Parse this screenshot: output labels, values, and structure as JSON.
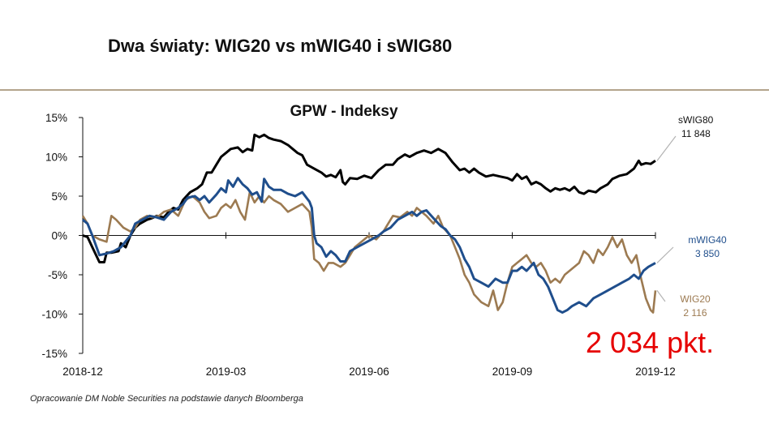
{
  "slide": {
    "title": "Dwa światy: WIG20 vs mWIG40 i sWIG80",
    "highlight": "2 034 pkt.",
    "footer": "Opracowanie DM Noble Securities  na podstawie danych Bloomberga"
  },
  "chart_data": {
    "type": "line",
    "title": "GPW - Indeksy",
    "xlabel": "",
    "ylabel": "",
    "x_range": [
      0,
      12
    ],
    "ylim": [
      -15,
      15
    ],
    "y_ticks": [
      15,
      10,
      5,
      0,
      -5,
      -10,
      -15
    ],
    "y_tick_labels": [
      "15%",
      "10%",
      "5%",
      "0%",
      "-5%",
      "-10%",
      "-15%"
    ],
    "x_ticks": [
      0,
      3,
      6,
      9,
      12
    ],
    "x_tick_labels": [
      "2018-12",
      "2019-03",
      "2019-06",
      "2019-09",
      "2019-12"
    ],
    "grid": false,
    "legend": "inline end labels",
    "series": [
      {
        "name": "sWIG80",
        "value_label": "11 848",
        "color": "#000000",
        "points": [
          [
            0,
            0
          ],
          [
            0.1,
            -0.2
          ],
          [
            0.2,
            -1.5
          ],
          [
            0.35,
            -3.4
          ],
          [
            0.45,
            -3.4
          ],
          [
            0.5,
            -2.2
          ],
          [
            0.6,
            -2.2
          ],
          [
            0.75,
            -2
          ],
          [
            0.8,
            -1
          ],
          [
            0.9,
            -1.5
          ],
          [
            1,
            0
          ],
          [
            1.1,
            1
          ],
          [
            1.2,
            1.5
          ],
          [
            1.35,
            2
          ],
          [
            1.45,
            2.2
          ],
          [
            1.55,
            2.5
          ],
          [
            1.7,
            2.3
          ],
          [
            1.8,
            3
          ],
          [
            1.9,
            3.5
          ],
          [
            2,
            3.3
          ],
          [
            2.1,
            4.5
          ],
          [
            2.25,
            5.5
          ],
          [
            2.4,
            6
          ],
          [
            2.5,
            6.5
          ],
          [
            2.6,
            8
          ],
          [
            2.7,
            8
          ],
          [
            2.8,
            9
          ],
          [
            2.9,
            10
          ],
          [
            3,
            10.5
          ],
          [
            3.1,
            11
          ],
          [
            3.25,
            11.2
          ],
          [
            3.35,
            10.6
          ],
          [
            3.45,
            11
          ],
          [
            3.55,
            10.8
          ],
          [
            3.6,
            12.8
          ],
          [
            3.7,
            12.5
          ],
          [
            3.8,
            12.8
          ],
          [
            3.9,
            12.4
          ],
          [
            4,
            12.2
          ],
          [
            4.15,
            12
          ],
          [
            4.3,
            11.5
          ],
          [
            4.4,
            11
          ],
          [
            4.5,
            10.5
          ],
          [
            4.6,
            10.2
          ],
          [
            4.7,
            9
          ],
          [
            4.85,
            8.5
          ],
          [
            5,
            8
          ],
          [
            5.1,
            7.5
          ],
          [
            5.2,
            7.7
          ],
          [
            5.3,
            7.4
          ],
          [
            5.4,
            8.3
          ],
          [
            5.45,
            6.8
          ],
          [
            5.5,
            6.5
          ],
          [
            5.6,
            7.3
          ],
          [
            5.75,
            7.2
          ],
          [
            5.9,
            7.6
          ],
          [
            6.05,
            7.3
          ],
          [
            6.2,
            8.3
          ],
          [
            6.35,
            9
          ],
          [
            6.5,
            9
          ],
          [
            6.6,
            9.7
          ],
          [
            6.75,
            10.3
          ],
          [
            6.85,
            10
          ],
          [
            7,
            10.5
          ],
          [
            7.15,
            10.8
          ],
          [
            7.3,
            10.5
          ],
          [
            7.45,
            11
          ],
          [
            7.6,
            10.5
          ],
          [
            7.75,
            9.3
          ],
          [
            7.9,
            8.3
          ],
          [
            8,
            8.5
          ],
          [
            8.1,
            8
          ],
          [
            8.2,
            8.5
          ],
          [
            8.3,
            8
          ],
          [
            8.45,
            7.5
          ],
          [
            8.6,
            7.7
          ],
          [
            8.75,
            7.5
          ],
          [
            8.9,
            7.3
          ],
          [
            9,
            7
          ],
          [
            9.1,
            7.8
          ],
          [
            9.2,
            7.2
          ],
          [
            9.3,
            7.5
          ],
          [
            9.4,
            6.5
          ],
          [
            9.5,
            6.8
          ],
          [
            9.6,
            6.5
          ],
          [
            9.7,
            6
          ],
          [
            9.8,
            5.6
          ],
          [
            9.9,
            6
          ],
          [
            10,
            5.8
          ],
          [
            10.1,
            6
          ],
          [
            10.2,
            5.7
          ],
          [
            10.3,
            6.2
          ],
          [
            10.4,
            5.5
          ],
          [
            10.5,
            5.3
          ],
          [
            10.6,
            5.7
          ],
          [
            10.75,
            5.5
          ],
          [
            10.85,
            6
          ],
          [
            11,
            6.5
          ],
          [
            11.1,
            7.2
          ],
          [
            11.25,
            7.6
          ],
          [
            11.4,
            7.8
          ],
          [
            11.55,
            8.5
          ],
          [
            11.65,
            9.5
          ],
          [
            11.7,
            9
          ],
          [
            11.8,
            9.2
          ],
          [
            11.9,
            9.1
          ],
          [
            12,
            9.5
          ]
        ]
      },
      {
        "name": "mWIG40",
        "value_label": "3 850",
        "color": "#1f4e8c",
        "points": [
          [
            0,
            2
          ],
          [
            0.1,
            1.5
          ],
          [
            0.2,
            0
          ],
          [
            0.35,
            -2.5
          ],
          [
            0.5,
            -2.3
          ],
          [
            0.65,
            -2
          ],
          [
            0.8,
            -1.5
          ],
          [
            1,
            0
          ],
          [
            1.1,
            1.5
          ],
          [
            1.25,
            2
          ],
          [
            1.4,
            2.5
          ],
          [
            1.55,
            2.3
          ],
          [
            1.7,
            2
          ],
          [
            1.85,
            3
          ],
          [
            2,
            3.5
          ],
          [
            2.1,
            4
          ],
          [
            2.2,
            4.8
          ],
          [
            2.35,
            5
          ],
          [
            2.45,
            4.5
          ],
          [
            2.55,
            5
          ],
          [
            2.65,
            4.2
          ],
          [
            2.8,
            5.2
          ],
          [
            2.9,
            6
          ],
          [
            3,
            5.5
          ],
          [
            3.05,
            7
          ],
          [
            3.15,
            6.2
          ],
          [
            3.25,
            7.3
          ],
          [
            3.35,
            6.5
          ],
          [
            3.45,
            6
          ],
          [
            3.55,
            5.2
          ],
          [
            3.65,
            5.5
          ],
          [
            3.75,
            4.3
          ],
          [
            3.8,
            7.2
          ],
          [
            3.9,
            6.2
          ],
          [
            4,
            5.8
          ],
          [
            4.15,
            5.8
          ],
          [
            4.3,
            5.3
          ],
          [
            4.45,
            5
          ],
          [
            4.6,
            5.5
          ],
          [
            4.75,
            4.3
          ],
          [
            4.8,
            3.5
          ],
          [
            4.85,
            0
          ],
          [
            4.9,
            -1
          ],
          [
            5,
            -1.5
          ],
          [
            5.1,
            -2.7
          ],
          [
            5.2,
            -2
          ],
          [
            5.3,
            -2.5
          ],
          [
            5.4,
            -3.3
          ],
          [
            5.5,
            -3.3
          ],
          [
            5.6,
            -2
          ],
          [
            5.75,
            -1.5
          ],
          [
            5.9,
            -1
          ],
          [
            6.05,
            -0.5
          ],
          [
            6.2,
            0
          ],
          [
            6.3,
            0.5
          ],
          [
            6.45,
            1
          ],
          [
            6.6,
            2
          ],
          [
            6.75,
            2.5
          ],
          [
            6.9,
            3
          ],
          [
            7,
            2.5
          ],
          [
            7.1,
            3
          ],
          [
            7.2,
            3.2
          ],
          [
            7.35,
            2.2
          ],
          [
            7.5,
            1.2
          ],
          [
            7.6,
            0.8
          ],
          [
            7.7,
            0
          ],
          [
            7.8,
            -0.5
          ],
          [
            7.9,
            -1.5
          ],
          [
            8,
            -3
          ],
          [
            8.1,
            -4
          ],
          [
            8.2,
            -5.5
          ],
          [
            8.35,
            -6
          ],
          [
            8.5,
            -6.5
          ],
          [
            8.65,
            -5.5
          ],
          [
            8.8,
            -6
          ],
          [
            8.9,
            -6
          ],
          [
            9,
            -4.5
          ],
          [
            9.1,
            -4.5
          ],
          [
            9.2,
            -4
          ],
          [
            9.3,
            -4.5
          ],
          [
            9.45,
            -3.5
          ],
          [
            9.55,
            -5
          ],
          [
            9.65,
            -5.5
          ],
          [
            9.75,
            -6.5
          ],
          [
            9.85,
            -8
          ],
          [
            9.95,
            -9.5
          ],
          [
            10.05,
            -9.8
          ],
          [
            10.15,
            -9.5
          ],
          [
            10.25,
            -9
          ],
          [
            10.4,
            -8.5
          ],
          [
            10.55,
            -9
          ],
          [
            10.7,
            -8
          ],
          [
            10.85,
            -7.5
          ],
          [
            11,
            -7
          ],
          [
            11.15,
            -6.5
          ],
          [
            11.3,
            -6
          ],
          [
            11.45,
            -5.5
          ],
          [
            11.55,
            -5
          ],
          [
            11.65,
            -5.5
          ],
          [
            11.75,
            -4.5
          ],
          [
            11.85,
            -4
          ],
          [
            12,
            -3.5
          ]
        ]
      },
      {
        "name": "WIG20",
        "value_label": "2 116",
        "color": "#9c7a51",
        "points": [
          [
            0,
            2.5
          ],
          [
            0.1,
            1.5
          ],
          [
            0.2,
            0
          ],
          [
            0.35,
            -0.5
          ],
          [
            0.5,
            -0.8
          ],
          [
            0.6,
            2.5
          ],
          [
            0.7,
            2
          ],
          [
            0.85,
            1
          ],
          [
            1,
            0.5
          ],
          [
            1.1,
            1
          ],
          [
            1.2,
            2
          ],
          [
            1.35,
            2.5
          ],
          [
            1.45,
            2.3
          ],
          [
            1.6,
            2.5
          ],
          [
            1.7,
            3
          ],
          [
            1.85,
            3.3
          ],
          [
            2,
            2.5
          ],
          [
            2.15,
            4.5
          ],
          [
            2.3,
            5
          ],
          [
            2.45,
            4.2
          ],
          [
            2.55,
            3
          ],
          [
            2.65,
            2.2
          ],
          [
            2.8,
            2.5
          ],
          [
            2.9,
            3.5
          ],
          [
            3,
            4
          ],
          [
            3.1,
            3.5
          ],
          [
            3.2,
            4.5
          ],
          [
            3.3,
            3
          ],
          [
            3.4,
            2
          ],
          [
            3.5,
            5.5
          ],
          [
            3.6,
            4.2
          ],
          [
            3.7,
            5
          ],
          [
            3.8,
            4.2
          ],
          [
            3.9,
            5
          ],
          [
            4,
            4.5
          ],
          [
            4.15,
            4
          ],
          [
            4.3,
            3
          ],
          [
            4.45,
            3.5
          ],
          [
            4.6,
            4
          ],
          [
            4.75,
            3
          ],
          [
            4.8,
            1
          ],
          [
            4.85,
            -3
          ],
          [
            4.95,
            -3.5
          ],
          [
            5.05,
            -4.5
          ],
          [
            5.15,
            -3.5
          ],
          [
            5.25,
            -3.5
          ],
          [
            5.4,
            -4
          ],
          [
            5.5,
            -3.5
          ],
          [
            5.6,
            -2.5
          ],
          [
            5.7,
            -1.5
          ],
          [
            5.8,
            -1
          ],
          [
            5.9,
            -0.5
          ],
          [
            6,
            0
          ],
          [
            6.15,
            -0.5
          ],
          [
            6.3,
            0.5
          ],
          [
            6.4,
            1.5
          ],
          [
            6.5,
            2.5
          ],
          [
            6.65,
            2.3
          ],
          [
            6.8,
            3
          ],
          [
            6.9,
            2.5
          ],
          [
            7,
            3.5
          ],
          [
            7.1,
            3
          ],
          [
            7.2,
            2.5
          ],
          [
            7.35,
            1.5
          ],
          [
            7.45,
            2.5
          ],
          [
            7.55,
            1
          ],
          [
            7.7,
            0
          ],
          [
            7.8,
            -1.5
          ],
          [
            7.9,
            -3
          ],
          [
            8,
            -5
          ],
          [
            8.1,
            -6
          ],
          [
            8.2,
            -7.5
          ],
          [
            8.35,
            -8.5
          ],
          [
            8.5,
            -9
          ],
          [
            8.6,
            -7
          ],
          [
            8.7,
            -9.5
          ],
          [
            8.8,
            -8.5
          ],
          [
            8.9,
            -6
          ],
          [
            9,
            -4
          ],
          [
            9.1,
            -3.5
          ],
          [
            9.2,
            -3
          ],
          [
            9.3,
            -2.5
          ],
          [
            9.4,
            -3.5
          ],
          [
            9.5,
            -4
          ],
          [
            9.6,
            -3.5
          ],
          [
            9.7,
            -4.5
          ],
          [
            9.8,
            -6
          ],
          [
            9.9,
            -5.5
          ],
          [
            10,
            -6
          ],
          [
            10.1,
            -5
          ],
          [
            10.2,
            -4.5
          ],
          [
            10.3,
            -4
          ],
          [
            10.4,
            -3.5
          ],
          [
            10.5,
            -2
          ],
          [
            10.6,
            -2.5
          ],
          [
            10.7,
            -3.5
          ],
          [
            10.8,
            -1.8
          ],
          [
            10.9,
            -2.5
          ],
          [
            11,
            -1.5
          ],
          [
            11.1,
            -0.2
          ],
          [
            11.2,
            -1.5
          ],
          [
            11.3,
            -0.5
          ],
          [
            11.4,
            -2.5
          ],
          [
            11.5,
            -3.5
          ],
          [
            11.6,
            -2.5
          ],
          [
            11.7,
            -5.5
          ],
          [
            11.8,
            -8
          ],
          [
            11.9,
            -9.5
          ],
          [
            11.95,
            -9.8
          ],
          [
            12,
            -7
          ]
        ]
      }
    ]
  }
}
